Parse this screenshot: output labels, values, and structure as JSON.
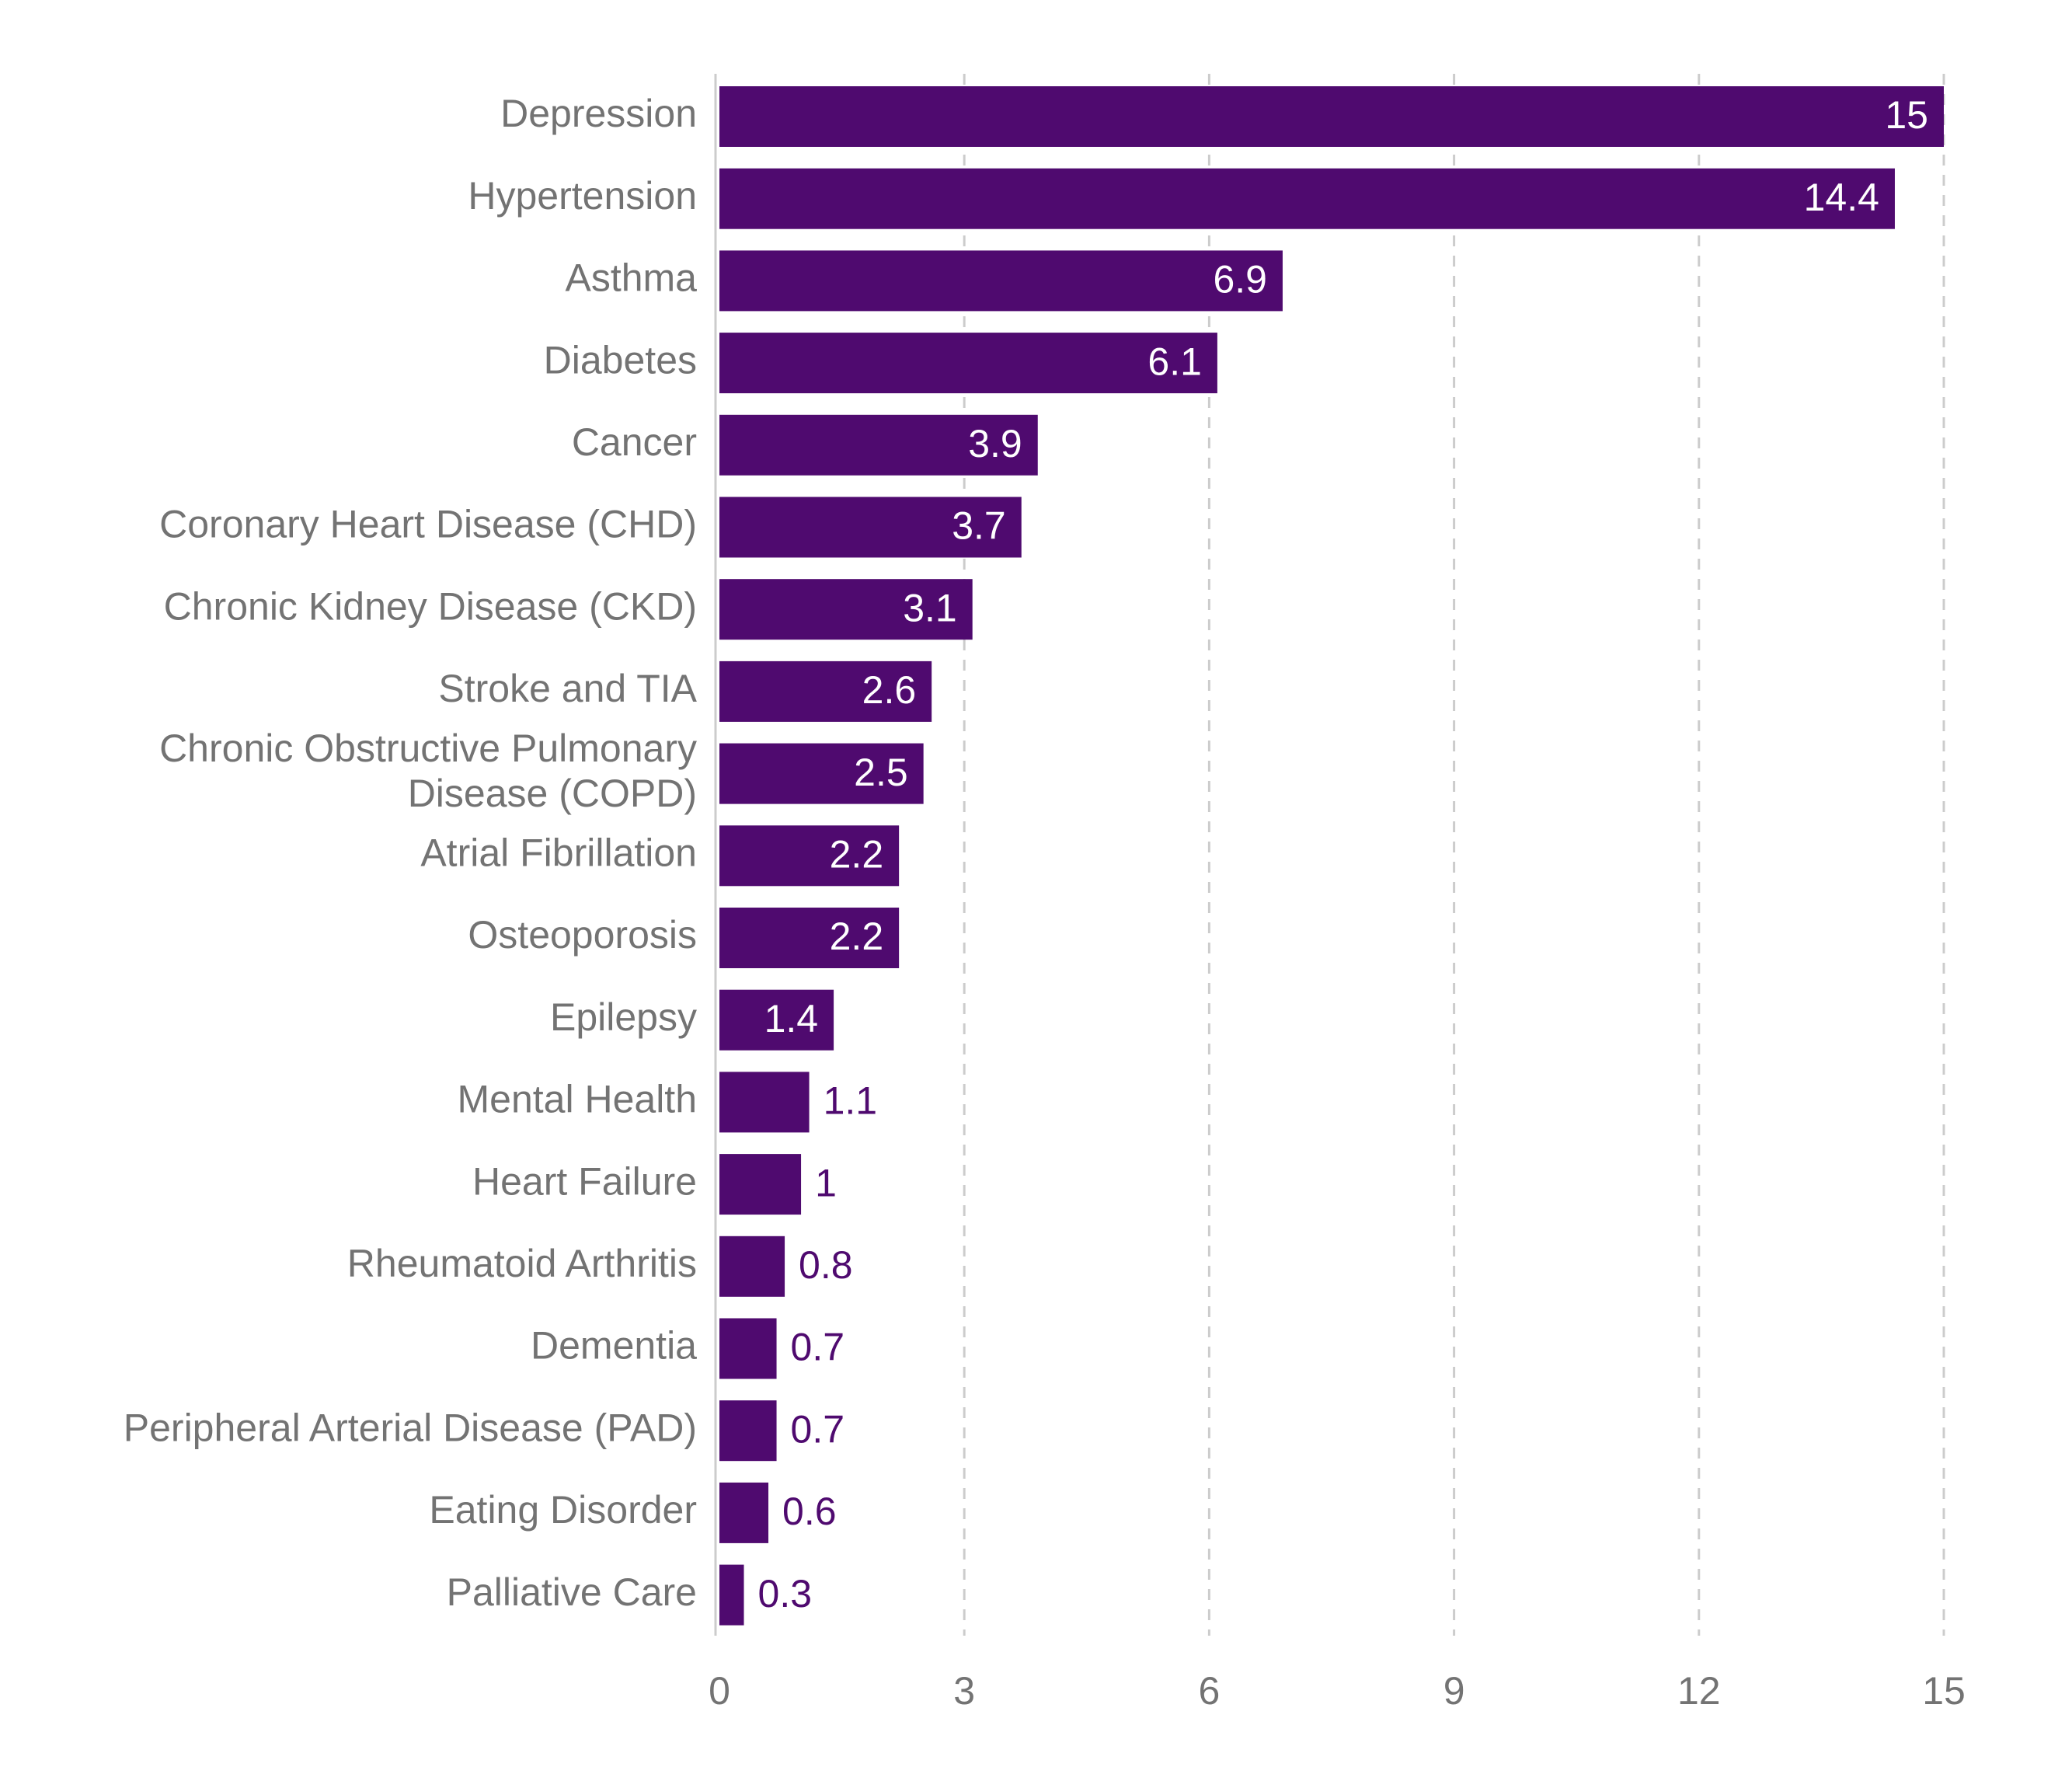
{
  "chart_data": {
    "type": "bar",
    "orientation": "horizontal",
    "categories": [
      [
        "Depression"
      ],
      [
        "Hypertension"
      ],
      [
        "Asthma"
      ],
      [
        "Diabetes"
      ],
      [
        "Cancer"
      ],
      [
        "Coronary Heart Disease (CHD)"
      ],
      [
        "Chronic Kidney Disease (CKD)"
      ],
      [
        "Stroke and TIA"
      ],
      [
        "Chronic Obstructive Pulmonary",
        "Disease (COPD)"
      ],
      [
        "Atrial Fibrillation"
      ],
      [
        "Osteoporosis"
      ],
      [
        "Epilepsy"
      ],
      [
        "Mental Health"
      ],
      [
        "Heart Failure"
      ],
      [
        "Rheumatoid Arthritis"
      ],
      [
        "Dementia"
      ],
      [
        "Peripheral Arterial Disease (PAD)"
      ],
      [
        "Eating Disorder"
      ],
      [
        "Palliative Care"
      ]
    ],
    "values": [
      15,
      14.4,
      6.9,
      6.1,
      3.9,
      3.7,
      3.1,
      2.6,
      2.5,
      2.2,
      2.2,
      1.4,
      1.1,
      1,
      0.8,
      0.7,
      0.7,
      0.6,
      0.3
    ],
    "value_labels": [
      "15",
      "14.4",
      "6.9",
      "6.1",
      "3.9",
      "3.7",
      "3.1",
      "2.6",
      "2.5",
      "2.2",
      "2.2",
      "1.4",
      "1.1",
      "1",
      "0.8",
      "0.7",
      "0.7",
      "0.6",
      "0.3"
    ],
    "xlim": [
      0,
      15
    ],
    "xticks": [
      0,
      3,
      6,
      9,
      12,
      15
    ],
    "xtick_labels": [
      "0",
      "3",
      "6",
      "9",
      "12",
      "15"
    ],
    "grid": "vertical dashed",
    "title": "",
    "xlabel": "",
    "ylabel": "",
    "colors": {
      "bar": "#4f0a6f",
      "label_inside": "#ffffff",
      "label_outside": "#4f0a6f",
      "category_text": "#737373",
      "grid": "#cccccc",
      "axis": "#cccccc"
    }
  }
}
